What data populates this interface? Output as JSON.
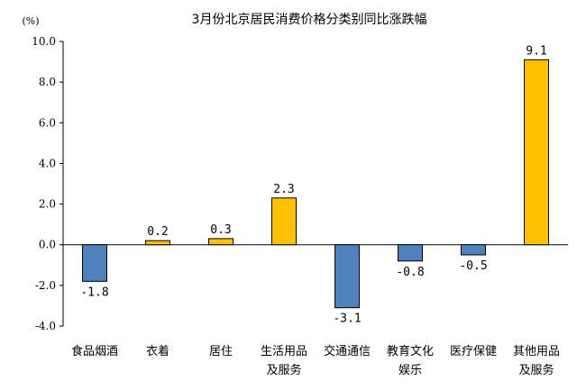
{
  "chart_data": {
    "type": "bar",
    "title": "3月份北京居民消费价格分类别同比涨跌幅",
    "ylabel": "(%)",
    "xlabel": "",
    "ylim": [
      -4.0,
      10.0
    ],
    "yticks": [
      "10.0",
      "8.0",
      "6.0",
      "4.0",
      "2.0",
      "0.0",
      "-2.0",
      "-4.0"
    ],
    "ytick_values": [
      10,
      8,
      6,
      4,
      2,
      0,
      -2,
      -4
    ],
    "categories": [
      [
        "食品烟酒"
      ],
      [
        "衣着"
      ],
      [
        "居住"
      ],
      [
        "生活用品",
        "及服务"
      ],
      [
        "交通通信"
      ],
      [
        "教育文化",
        "娱乐"
      ],
      [
        "医疗保健"
      ],
      [
        "其他用品",
        "及服务"
      ]
    ],
    "values": [
      -1.8,
      0.2,
      0.3,
      2.3,
      -3.1,
      -0.8,
      -0.5,
      9.1
    ],
    "value_labels": [
      "-1.8",
      "0.2",
      "0.3",
      "2.3",
      "-3.1",
      "-0.8",
      "-0.5",
      "9.1"
    ],
    "colors": {
      "positive": "#FFC000",
      "negative": "#4F81BD",
      "border": "#000000"
    },
    "grid": false,
    "legend": "none"
  }
}
